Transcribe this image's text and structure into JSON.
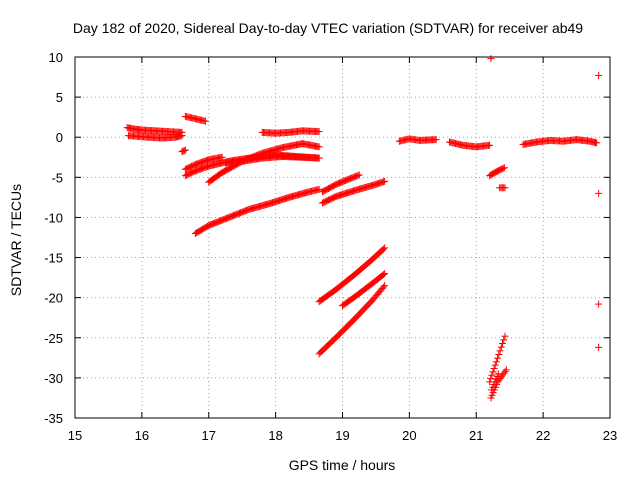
{
  "chart_data": {
    "type": "scatter",
    "title": "Day 182 of 2020, Sidereal Day-to-day VTEC variation (SDTVAR) for receiver ab49",
    "xlabel": "GPS time / hours",
    "ylabel": "SDTVAR / TECUs",
    "xlim": [
      15,
      23
    ],
    "ylim": [
      -35,
      10
    ],
    "xticks": [
      15,
      16,
      17,
      18,
      19,
      20,
      21,
      22,
      23
    ],
    "yticks": [
      10,
      5,
      0,
      -5,
      -10,
      -15,
      -20,
      -25,
      -30,
      -35
    ],
    "grid": true,
    "legend": "none",
    "marker": "+",
    "color": "#ff0000",
    "segments": [
      {
        "x": [
          15.78,
          15.9,
          16.0,
          16.2,
          16.4,
          16.6
        ],
        "y": [
          1.2,
          1.0,
          0.9,
          0.8,
          0.7,
          0.6
        ]
      },
      {
        "x": [
          15.8,
          15.95,
          16.1,
          16.3,
          16.5,
          16.6
        ],
        "y": [
          0.2,
          0.1,
          0.0,
          -0.1,
          0.0,
          0.2
        ]
      },
      {
        "x": [
          16.6,
          16.65
        ],
        "y": [
          -1.8,
          -1.6
        ]
      },
      {
        "x": [
          16.65,
          16.8,
          16.95
        ],
        "y": [
          2.6,
          2.3,
          2.0
        ]
      },
      {
        "x": [
          16.65,
          16.8,
          17.0,
          17.3,
          17.6,
          18.0,
          18.3,
          18.65
        ],
        "y": [
          -4.8,
          -4.2,
          -3.6,
          -3.0,
          -2.6,
          -2.2,
          -2.4,
          -2.6
        ]
      },
      {
        "x": [
          16.65,
          16.8,
          17.0,
          17.2
        ],
        "y": [
          -4.0,
          -3.4,
          -2.8,
          -2.5
        ]
      },
      {
        "x": [
          17.0,
          17.2,
          17.5,
          17.8,
          18.1,
          18.4,
          18.65
        ],
        "y": [
          -5.6,
          -4.4,
          -3.0,
          -2.0,
          -1.3,
          -0.8,
          -1.2
        ]
      },
      {
        "x": [
          17.25,
          17.5,
          17.8,
          18.1,
          18.4,
          18.65
        ],
        "y": [
          -3.2,
          -3.0,
          -2.6,
          -2.4,
          -2.5,
          -2.6
        ]
      },
      {
        "x": [
          17.8,
          18.0,
          18.2,
          18.4,
          18.65
        ],
        "y": [
          0.6,
          0.5,
          0.6,
          0.8,
          0.7
        ]
      },
      {
        "x": [
          16.8,
          17.0,
          17.3,
          17.6,
          17.9,
          18.2,
          18.5,
          18.65
        ],
        "y": [
          -12.0,
          -11.0,
          -10.0,
          -9.0,
          -8.3,
          -7.5,
          -6.8,
          -6.5
        ]
      },
      {
        "x": [
          18.7,
          18.9,
          19.1,
          19.25
        ],
        "y": [
          -6.8,
          -5.9,
          -5.2,
          -4.7
        ]
      },
      {
        "x": [
          18.7,
          18.9,
          19.2,
          19.45,
          19.63
        ],
        "y": [
          -8.2,
          -7.4,
          -6.6,
          -6.0,
          -5.5
        ]
      },
      {
        "x": [
          18.65,
          18.9,
          19.2,
          19.45,
          19.63
        ],
        "y": [
          -20.5,
          -19.0,
          -17.0,
          -15.2,
          -13.8
        ]
      },
      {
        "x": [
          19.0,
          19.2,
          19.45,
          19.63
        ],
        "y": [
          -21.0,
          -19.8,
          -18.2,
          -17.0
        ]
      },
      {
        "x": [
          18.65,
          18.9,
          19.2,
          19.45,
          19.63
        ],
        "y": [
          -27.0,
          -25.0,
          -22.5,
          -20.3,
          -18.5
        ]
      },
      {
        "x": [
          19.85,
          20.0,
          20.15,
          20.4
        ],
        "y": [
          -0.5,
          -0.2,
          -0.4,
          -0.3
        ]
      },
      {
        "x": [
          20.6,
          20.8,
          21.0,
          21.2
        ],
        "y": [
          -0.6,
          -1.0,
          -1.2,
          -1.0
        ]
      },
      {
        "x": [
          21.2,
          21.3,
          21.42
        ],
        "y": [
          -4.8,
          -4.3,
          -3.8
        ]
      },
      {
        "x": [
          21.35,
          21.43
        ],
        "y": [
          -6.3,
          -6.3
        ]
      },
      {
        "x": [
          21.7,
          21.9,
          22.1,
          22.3,
          22.5,
          22.7,
          22.8
        ],
        "y": [
          -0.9,
          -0.6,
          -0.4,
          -0.5,
          -0.3,
          -0.5,
          -0.7
        ]
      },
      {
        "x": [
          21.2,
          21.3,
          21.43
        ],
        "y": [
          -30.5,
          -28.0,
          -24.8
        ]
      },
      {
        "x": [
          21.22,
          21.32,
          21.45
        ],
        "y": [
          -32.5,
          -30.5,
          -29.0
        ]
      },
      {
        "x": [
          21.23,
          21.33
        ],
        "y": [
          -31.5,
          -29.5
        ]
      }
    ],
    "isolated_points": [
      {
        "x": 21.22,
        "y": 9.8
      },
      {
        "x": 22.83,
        "y": 7.7
      },
      {
        "x": 22.83,
        "y": -7.0
      },
      {
        "x": 22.83,
        "y": -20.8
      },
      {
        "x": 22.83,
        "y": -26.2
      }
    ]
  }
}
